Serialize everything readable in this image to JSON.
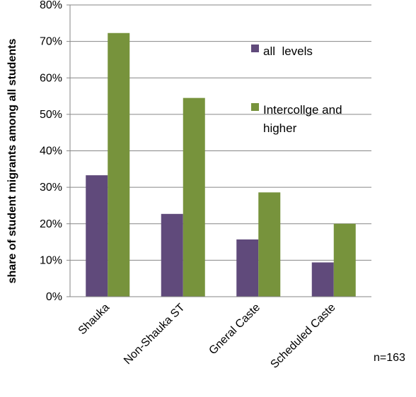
{
  "chart_data": {
    "type": "bar",
    "categories": [
      "Shauka",
      "Non-Shauka ST",
      "Gneral Caste",
      "Scheduled Caste"
    ],
    "series": [
      {
        "name": "all  levels",
        "values": [
          33.3,
          22.7,
          15.7,
          9.4
        ],
        "color": "#604a7b"
      },
      {
        "name": "Intercollge and higher",
        "name_lines": [
          "Intercollge and",
          "higher"
        ],
        "values": [
          72.3,
          54.5,
          28.6,
          20.0
        ],
        "color": "#77933c"
      }
    ],
    "ylabel": "share of student migrants among all students",
    "ylim": [
      0,
      80
    ],
    "yticks": [
      0,
      10,
      20,
      30,
      40,
      50,
      60,
      70,
      80
    ],
    "ytick_labels": [
      "0%",
      "10%",
      "20%",
      "30%",
      "40%",
      "50%",
      "60%",
      "70%",
      "80%"
    ],
    "grid": true,
    "legend_position": "top-right",
    "annotation": "n=163"
  }
}
